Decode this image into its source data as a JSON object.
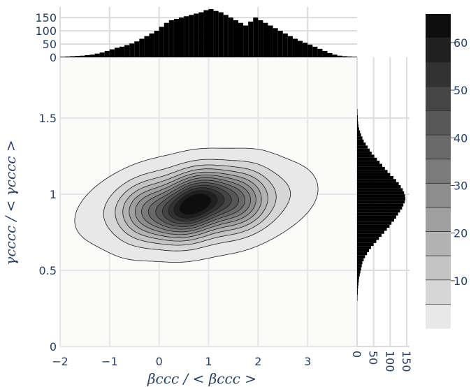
{
  "chart_data": {
    "type": "heatmap",
    "subtype": "2d-density-contour-with-marginal-histograms",
    "xlabel": "βccc / < βccc >",
    "ylabel": "γcccc / < γcccc >",
    "x_range": [
      -2,
      4
    ],
    "y_range": [
      0,
      1.9
    ],
    "x_ticks": [
      "−2",
      "−1",
      "0",
      "1",
      "2",
      "3"
    ],
    "y_ticks": [
      "0",
      "0.5",
      "1",
      "1.5"
    ],
    "grid": true,
    "top_histogram": {
      "y_ticks": [
        "0",
        "50",
        "100",
        "150"
      ],
      "y_range": [
        0,
        190
      ],
      "bin_start": -2.0,
      "bin_width": 0.1,
      "counts": [
        2,
        3,
        4,
        5,
        6,
        8,
        10,
        14,
        18,
        24,
        30,
        36,
        40,
        46,
        52,
        60,
        70,
        80,
        90,
        100,
        115,
        130,
        140,
        145,
        150,
        155,
        160,
        165,
        170,
        178,
        182,
        175,
        170,
        160,
        150,
        140,
        130,
        120,
        135,
        150,
        140,
        130,
        120,
        110,
        100,
        90,
        80,
        70,
        62,
        55,
        48,
        40,
        32,
        24,
        16,
        10,
        6,
        4,
        3,
        2
      ]
    },
    "right_histogram": {
      "x_ticks": [
        "0",
        "50",
        "100",
        "150"
      ],
      "x_range": [
        0,
        150
      ],
      "bin_start": 0.3,
      "bin_width": 0.02,
      "counts": [
        1,
        1,
        2,
        2,
        3,
        4,
        5,
        6,
        8,
        10,
        12,
        14,
        16,
        20,
        24,
        30,
        36,
        42,
        50,
        58,
        66,
        74,
        82,
        90,
        98,
        104,
        112,
        118,
        124,
        130,
        136,
        140,
        144,
        146,
        145,
        142,
        138,
        132,
        126,
        118,
        110,
        100,
        92,
        84,
        76,
        68,
        60,
        52,
        44,
        38,
        32,
        26,
        20,
        16,
        12,
        9,
        6,
        4,
        3,
        2,
        2,
        1,
        1
      ]
    },
    "colorbar": {
      "ticks": [
        "10",
        "20",
        "30",
        "40",
        "50",
        "60"
      ],
      "range": [
        0,
        66
      ],
      "levels": 13
    },
    "density": {
      "center_x": 0.75,
      "center_y": 0.93,
      "sigma_x": 0.9,
      "sigma_y": 0.14,
      "correlation": 0.25,
      "peak": 66
    }
  }
}
